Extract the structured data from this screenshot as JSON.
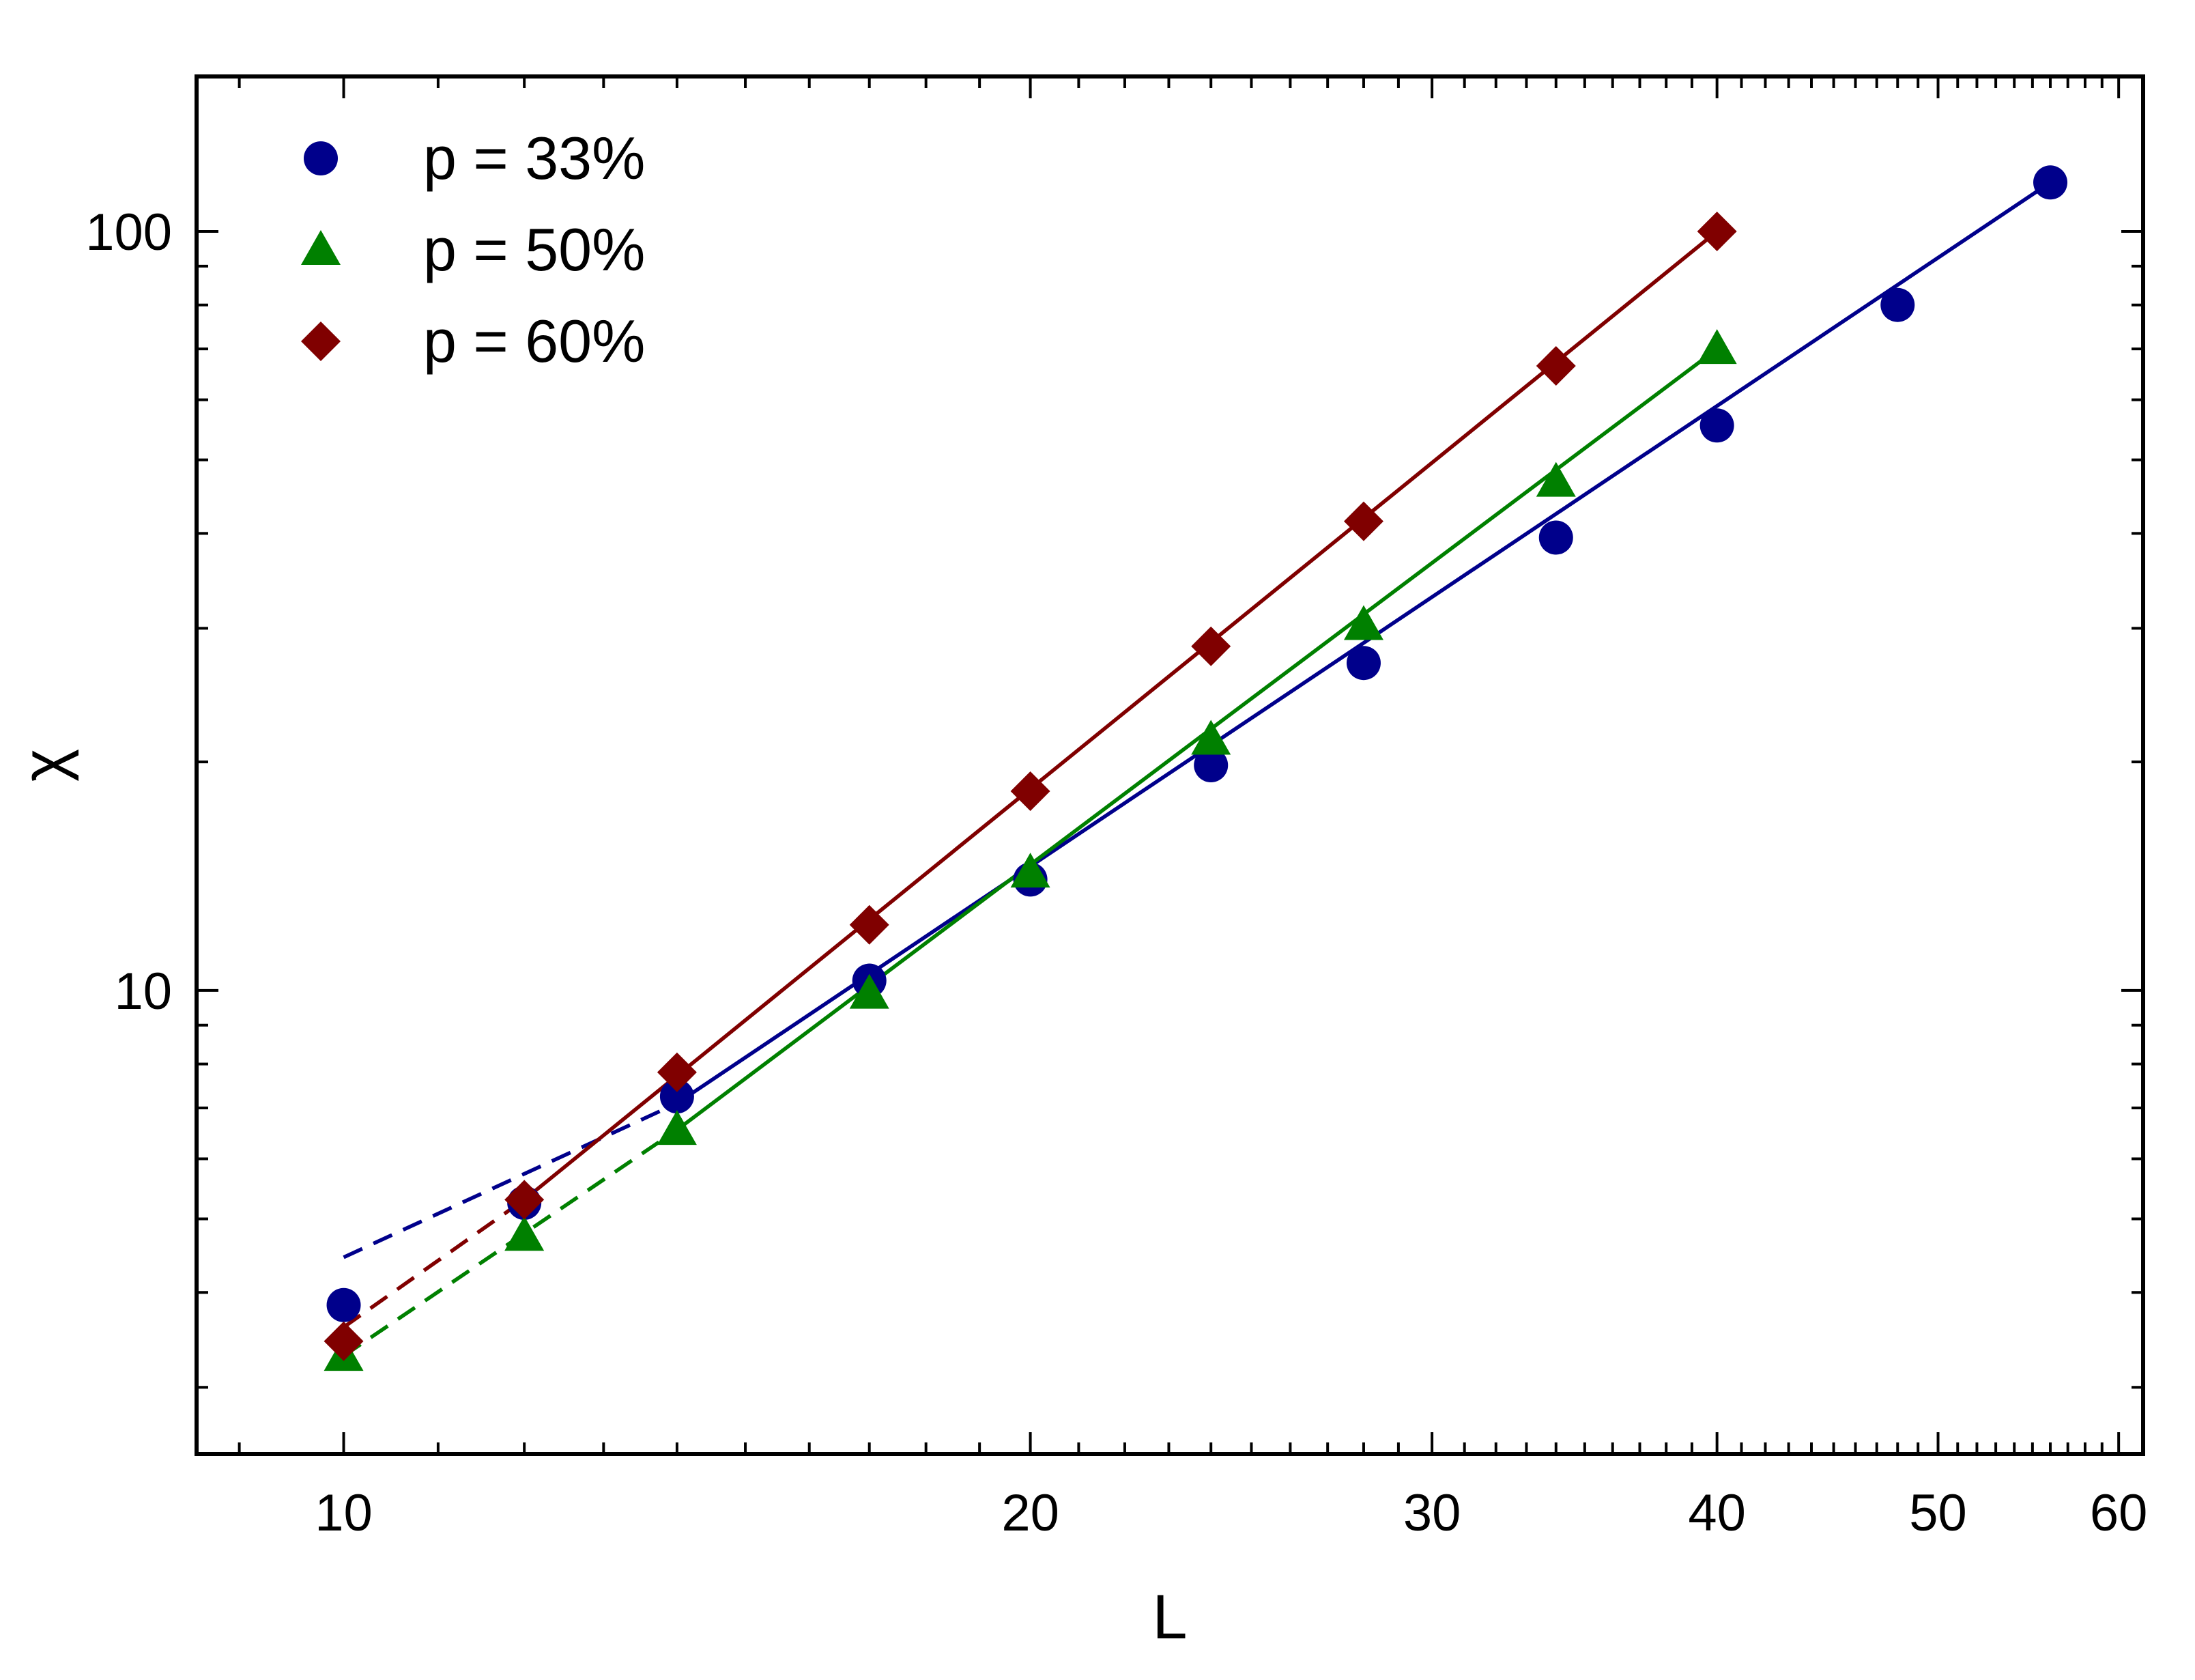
{
  "chart_data": {
    "type": "scatter",
    "title": "",
    "xlabel": "L",
    "ylabel": "χ",
    "x_scale": "log",
    "y_scale": "log",
    "xlim": [
      8.62,
      61.5
    ],
    "ylim": [
      2.45,
      160
    ],
    "x_ticks": [
      10,
      20,
      30,
      40,
      50,
      60
    ],
    "x_tick_labels": [
      "10",
      "20",
      "30",
      "40",
      "50",
      "60"
    ],
    "y_ticks": [
      10,
      100
    ],
    "y_tick_labels": [
      "10",
      "100"
    ],
    "grid": false,
    "legend_position": "top-left",
    "series": [
      {
        "name": "p = 33%",
        "marker": "circle",
        "color": "#00008B",
        "x": [
          10,
          12,
          14,
          17,
          20,
          24,
          28,
          34,
          40,
          48,
          56
        ],
        "y": [
          3.85,
          5.25,
          7.25,
          10.3,
          14.0,
          19.8,
          27.0,
          39.5,
          55.5,
          80.0,
          116.0
        ],
        "fit_x": [
          14,
          56
        ],
        "dashed_x": [
          10,
          14
        ],
        "fit_y": [
          7.1,
          116.0
        ],
        "dashed_y": [
          4.45,
          7.1
        ]
      },
      {
        "name": "p = 50%",
        "marker": "triangle",
        "color": "#008000",
        "x": [
          10,
          12,
          14,
          17,
          20,
          24,
          28,
          34,
          40
        ],
        "y": [
          3.3,
          4.75,
          6.55,
          9.9,
          14.3,
          21.4,
          30.3,
          46.8,
          70.0
        ],
        "fit_x": [
          14,
          40
        ],
        "dashed_x": [
          10,
          14
        ],
        "fit_y": [
          6.55,
          70.0
        ],
        "dashed_y": [
          3.3,
          6.55
        ]
      },
      {
        "name": "p = 60%",
        "marker": "diamond",
        "color": "#800000",
        "x": [
          10,
          12,
          14,
          17,
          20,
          24,
          28,
          34,
          40
        ],
        "y": [
          3.45,
          5.3,
          7.8,
          12.2,
          18.3,
          28.4,
          41.5,
          66.5,
          100.0
        ],
        "fit_x": [
          12,
          40
        ],
        "dashed_x": [
          10,
          12
        ],
        "fit_y": [
          5.3,
          100.0
        ],
        "dashed_y": [
          3.6,
          5.3
        ]
      }
    ]
  }
}
